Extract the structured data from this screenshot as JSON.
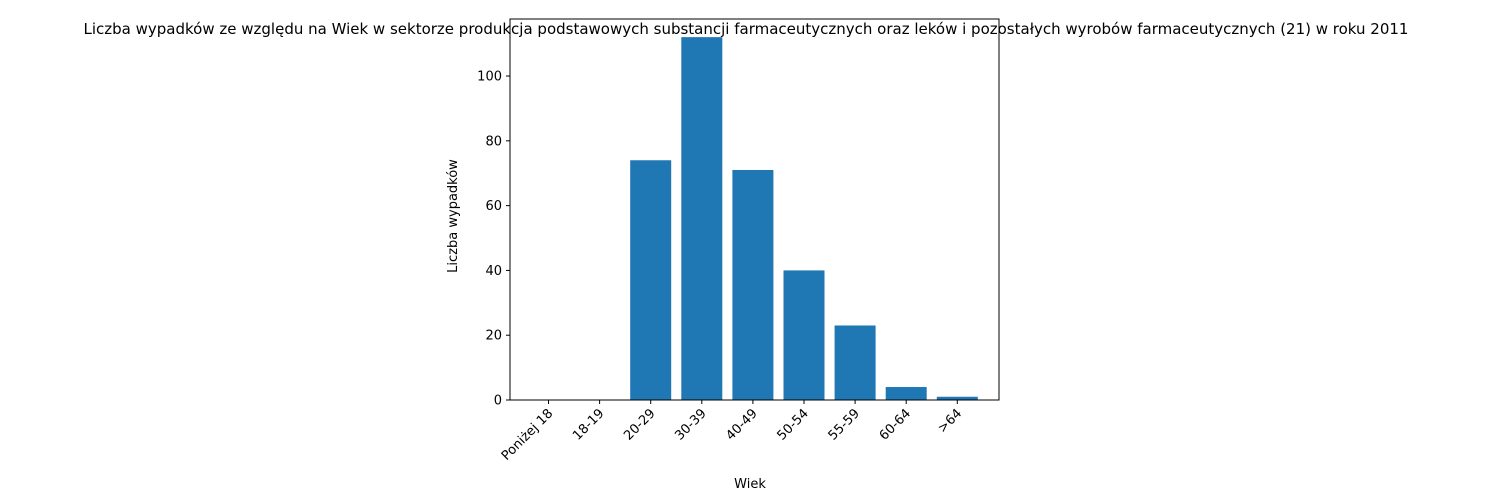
{
  "chart_data": {
    "type": "bar",
    "title": "Liczba wypadków ze względu na Wiek w sektorze produkcja podstawowych substancji farmaceutycznych oraz leków i pozostałych wyrobów farmaceutycznych (21)  w roku 2011",
    "xlabel": "Wiek",
    "ylabel": "Liczba wypadków",
    "categories": [
      "Poniżej 18",
      "18-19",
      "20-29",
      "30-39",
      "40-49",
      "50-54",
      "55-59",
      "60-64",
      ">64"
    ],
    "values": [
      0,
      0,
      74,
      112,
      71,
      40,
      23,
      4,
      1
    ],
    "ylim": [
      0,
      117.6
    ],
    "yticks": [
      0,
      20,
      40,
      60,
      80,
      100
    ],
    "grid": false,
    "bar_color": "#1f77b4"
  }
}
